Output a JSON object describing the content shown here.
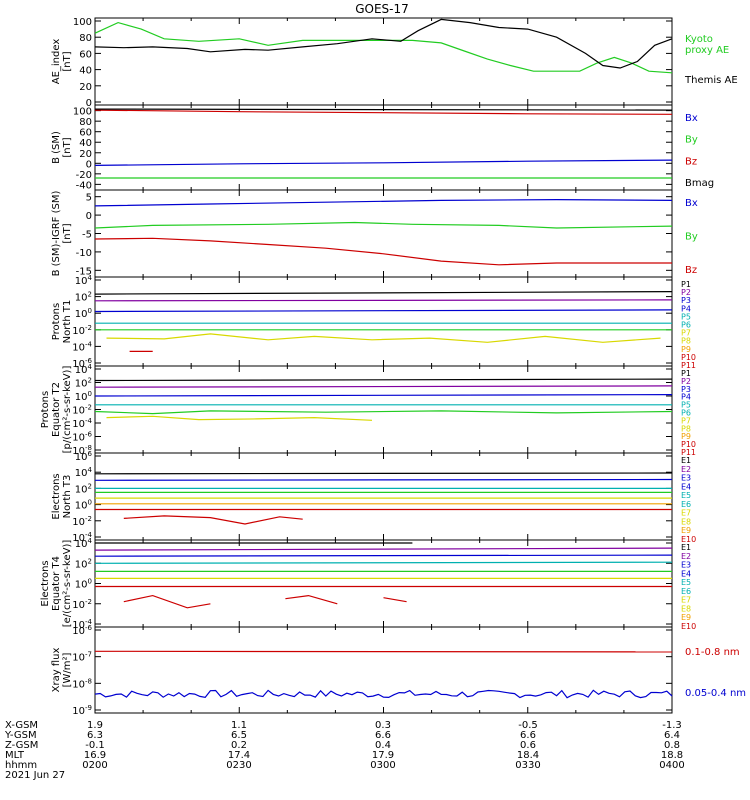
{
  "title": "GOES-17",
  "colors": {
    "black": "#000000",
    "blue": "#0000d0",
    "green": "#22cc22",
    "red": "#cc0000",
    "cyan": "#00b0b0",
    "orange": "#f0a000",
    "yellow": "#d8d800",
    "purple": "#8000a0"
  },
  "chart_data": [
    {
      "type": "line",
      "ylabel": "AE_index\n[nT]",
      "ylim": [
        0,
        100
      ],
      "yticks": [
        "0",
        "20",
        "40",
        "60",
        "80",
        "100"
      ],
      "series": [
        {
          "name": "Kyoto\nproxy AE",
          "color": "green",
          "x": [
            0,
            0.04,
            0.08,
            0.12,
            0.18,
            0.25,
            0.3,
            0.36,
            0.42,
            0.5,
            0.55,
            0.6,
            0.64,
            0.68,
            0.72,
            0.76,
            0.8,
            0.84,
            0.87,
            0.9,
            0.93,
            0.96,
            1
          ],
          "y": [
            85,
            98,
            90,
            78,
            75,
            78,
            70,
            76,
            76,
            76,
            76,
            73,
            63,
            53,
            45,
            38,
            38,
            38,
            48,
            55,
            48,
            38,
            36
          ]
        },
        {
          "name": "Themis AE",
          "color": "black",
          "x": [
            0,
            0.05,
            0.1,
            0.16,
            0.2,
            0.26,
            0.3,
            0.36,
            0.42,
            0.48,
            0.53,
            0.56,
            0.6,
            0.65,
            0.7,
            0.75,
            0.8,
            0.85,
            0.88,
            0.91,
            0.94,
            0.97,
            1
          ],
          "y": [
            68,
            67,
            68,
            66,
            62,
            65,
            64,
            68,
            72,
            78,
            75,
            88,
            102,
            98,
            92,
            90,
            80,
            60,
            45,
            42,
            50,
            70,
            78
          ]
        }
      ]
    },
    {
      "type": "line",
      "ylabel": "B (SM)\n[nT]",
      "ylim": [
        -45,
        105
      ],
      "yticks": [
        "-40",
        "-20",
        "0",
        "20",
        "40",
        "60",
        "80",
        "100"
      ],
      "series": [
        {
          "name": "Bx",
          "color": "blue",
          "x": [
            0,
            0.25,
            0.5,
            0.75,
            1
          ],
          "y": [
            -4,
            -1,
            1,
            4,
            6
          ]
        },
        {
          "name": "By",
          "color": "green",
          "x": [
            0,
            0.5,
            1
          ],
          "y": [
            -28,
            -28,
            -28
          ]
        },
        {
          "name": "Bz",
          "color": "red",
          "x": [
            0,
            0.25,
            0.5,
            0.75,
            1
          ],
          "y": [
            101,
            98,
            96,
            94,
            93
          ]
        },
        {
          "name": "Bmag",
          "color": "black",
          "x": [
            0,
            0.5,
            1
          ],
          "y": [
            103,
            102,
            101
          ]
        }
      ]
    },
    {
      "type": "line",
      "ylabel": "B (SM)-IGRF (SM)\n[nT]",
      "ylim": [
        -16,
        6
      ],
      "yticks": [
        "-15",
        "-10",
        "-5",
        "0",
        "5"
      ],
      "series": [
        {
          "name": "Bx",
          "color": "blue",
          "x": [
            0,
            0.2,
            0.4,
            0.6,
            0.8,
            1
          ],
          "y": [
            2.5,
            3,
            3.5,
            4,
            4.2,
            4
          ]
        },
        {
          "name": "By",
          "color": "green",
          "x": [
            0,
            0.1,
            0.3,
            0.45,
            0.55,
            0.7,
            0.8,
            1
          ],
          "y": [
            -3.5,
            -2.8,
            -2.5,
            -2,
            -2.5,
            -2.8,
            -3.5,
            -3
          ]
        },
        {
          "name": "Bz",
          "color": "red",
          "x": [
            0,
            0.1,
            0.2,
            0.3,
            0.4,
            0.5,
            0.6,
            0.7,
            0.8,
            1
          ],
          "y": [
            -6.5,
            -6.3,
            -7,
            -8,
            -9,
            -10.5,
            -12.5,
            -13.5,
            -13,
            -13
          ]
        }
      ]
    },
    {
      "type": "line",
      "ylabel": "Protons\nNorth T1",
      "log": true,
      "ylim": [
        -6,
        4
      ],
      "yticks": [
        "10^-6",
        "10^-4",
        "10^-2",
        "10^0",
        "10^2",
        "10^4"
      ],
      "labels": [
        "P1",
        "P2",
        "P3",
        "P4",
        "P5",
        "P6",
        "P7",
        "P8",
        "P9",
        "P10",
        "P11"
      ],
      "series": [
        {
          "name": "P1",
          "color": "black",
          "x": [
            0,
            1
          ],
          "y": [
            2.3,
            2.6
          ]
        },
        {
          "name": "P3",
          "color": "purple",
          "x": [
            0,
            1
          ],
          "y": [
            1.5,
            1.6
          ]
        },
        {
          "name": "P4",
          "color": "blue",
          "x": [
            0,
            1
          ],
          "y": [
            0.2,
            0.4
          ]
        },
        {
          "name": "P6",
          "color": "cyan",
          "x": [
            0,
            1
          ],
          "y": [
            -1.2,
            -1.2
          ]
        },
        {
          "name": "P7",
          "color": "green",
          "x": [
            0,
            1
          ],
          "y": [
            -2,
            -2
          ]
        },
        {
          "name": "P8",
          "color": "yellow",
          "x": [
            0.02,
            0.12,
            0.2,
            0.3,
            0.38,
            0.48,
            0.58,
            0.68,
            0.78,
            0.88,
            0.98
          ],
          "y": [
            -3,
            -3.1,
            -2.5,
            -3.2,
            -2.8,
            -3.2,
            -3,
            -3.5,
            -2.8,
            -3.5,
            -3
          ]
        },
        {
          "name": "P10",
          "color": "red",
          "x": [
            0.06,
            0.1
          ],
          "y": [
            -4.6,
            -4.6
          ]
        }
      ]
    },
    {
      "type": "line",
      "ylabel": "Protons\nEquator T2\n[p/(cm²-s-sr-keV)]",
      "log": true,
      "ylim": [
        -8,
        4
      ],
      "yticks": [
        "10^-8",
        "10^-6",
        "10^-4",
        "10^-2",
        "10^0",
        "10^2",
        "10^4"
      ],
      "labels": [
        "P1",
        "P2",
        "P3",
        "P4",
        "P5",
        "P6",
        "P7",
        "P8",
        "P9",
        "P10",
        "P11"
      ],
      "series": [
        {
          "name": "P1",
          "color": "black",
          "x": [
            0,
            1
          ],
          "y": [
            2.3,
            2.5
          ]
        },
        {
          "name": "P3",
          "color": "purple",
          "x": [
            0,
            1
          ],
          "y": [
            1.3,
            1.5
          ]
        },
        {
          "name": "P4",
          "color": "blue",
          "x": [
            0,
            1
          ],
          "y": [
            0,
            0.2
          ]
        },
        {
          "name": "P6",
          "color": "cyan",
          "x": [
            0,
            1
          ],
          "y": [
            -1.3,
            -1.3
          ]
        },
        {
          "name": "P7",
          "color": "green",
          "x": [
            0,
            0.1,
            0.2,
            0.4,
            0.6,
            0.8,
            1
          ],
          "y": [
            -2.3,
            -2.6,
            -2.2,
            -2.4,
            -2.2,
            -2.5,
            -2.3
          ]
        },
        {
          "name": "P8",
          "color": "yellow",
          "x": [
            0.02,
            0.1,
            0.18,
            0.28,
            0.38,
            0.48
          ],
          "y": [
            -3.2,
            -3,
            -3.5,
            -3.4,
            -3.2,
            -3.6
          ]
        }
      ]
    },
    {
      "type": "line",
      "ylabel": "Electrons\nNorth T3",
      "log": true,
      "ylim": [
        -4,
        6
      ],
      "yticks": [
        "10^-4",
        "10^-2",
        "10^0",
        "10^2",
        "10^4",
        "10^6"
      ],
      "labels": [
        "E1",
        "E2",
        "E3",
        "E4",
        "E5",
        "E6",
        "E7",
        "E8",
        "E9",
        "E10"
      ],
      "series": [
        {
          "name": "E1",
          "color": "black",
          "x": [
            0,
            1
          ],
          "y": [
            3.8,
            3.9
          ]
        },
        {
          "name": "E3",
          "color": "blue",
          "x": [
            0,
            1
          ],
          "y": [
            3,
            3.1
          ]
        },
        {
          "name": "E4",
          "color": "cyan",
          "x": [
            0,
            1
          ],
          "y": [
            2,
            2
          ]
        },
        {
          "name": "E5",
          "color": "green",
          "x": [
            0,
            1
          ],
          "y": [
            1.5,
            1.5
          ]
        },
        {
          "name": "E6",
          "color": "yellow",
          "x": [
            0,
            1
          ],
          "y": [
            0.8,
            0.8
          ]
        },
        {
          "name": "E7",
          "color": "orange",
          "x": [
            0,
            1
          ],
          "y": [
            0.1,
            0.1
          ]
        },
        {
          "name": "E8",
          "color": "red",
          "x": [
            0,
            1
          ],
          "y": [
            -0.6,
            -0.6
          ]
        },
        {
          "name": "E9",
          "color": "red",
          "x": [
            0.05,
            0.12,
            0.2,
            0.26,
            0.32,
            0.36
          ],
          "y": [
            -1.7,
            -1.4,
            -1.6,
            -2.4,
            -1.5,
            -1.8
          ]
        }
      ]
    },
    {
      "type": "line",
      "ylabel": "Electrons\nEquator T4\n[e/(cm²-s-sr-keV)]",
      "log": true,
      "ylim": [
        -4,
        4
      ],
      "yticks": [
        "10^-4",
        "10^-2",
        "10^0",
        "10^2",
        "10^4"
      ],
      "labels": [
        "E1",
        "E2",
        "E3",
        "E4",
        "E5",
        "E6",
        "E7",
        "E8",
        "E9",
        "E10"
      ],
      "series": [
        {
          "name": "E1",
          "color": "black",
          "x": [
            0,
            0.55
          ],
          "y": [
            4,
            4
          ]
        },
        {
          "name": "E2",
          "color": "purple",
          "x": [
            0,
            1
          ],
          "y": [
            3.3,
            3.5
          ]
        },
        {
          "name": "E3",
          "color": "blue",
          "x": [
            0,
            1
          ],
          "y": [
            2.7,
            2.8
          ]
        },
        {
          "name": "E4",
          "color": "cyan",
          "x": [
            0,
            1
          ],
          "y": [
            2,
            2.1
          ]
        },
        {
          "name": "E5",
          "color": "green",
          "x": [
            0,
            1
          ],
          "y": [
            1.2,
            1.2
          ]
        },
        {
          "name": "E6",
          "color": "yellow",
          "x": [
            0,
            1
          ],
          "y": [
            0.5,
            0.5
          ]
        },
        {
          "name": "E8",
          "color": "red",
          "x": [
            0,
            1
          ],
          "y": [
            -0.3,
            -0.3
          ]
        },
        {
          "name": "E9",
          "color": "red",
          "x": [
            0.05,
            0.1,
            0.16,
            0.2
          ],
          "y": [
            -1.8,
            -1.2,
            -2.4,
            -2
          ]
        },
        {
          "name": "E9b",
          "color": "red",
          "x": [
            0.33,
            0.37,
            0.42
          ],
          "y": [
            -1.5,
            -1.2,
            -2
          ]
        },
        {
          "name": "E9c",
          "color": "red",
          "x": [
            0.5,
            0.54
          ],
          "y": [
            -1.4,
            -1.8
          ]
        }
      ]
    },
    {
      "type": "line",
      "ylabel": "Xray flux\n[W/m²]",
      "log": true,
      "ylim": [
        -9,
        -6
      ],
      "yticks": [
        "10^-9",
        "10^-8",
        "10^-7",
        "10^-6"
      ],
      "series": [
        {
          "name": "0.1-0.8 nm",
          "color": "red",
          "x": [
            0,
            1
          ],
          "y": [
            -6.8,
            -6.82
          ]
        },
        {
          "name": "0.05-0.4 nm",
          "color": "blue",
          "noisy": true,
          "x": [
            0,
            1
          ],
          "y": [
            -8.4,
            -8.4
          ]
        }
      ]
    }
  ],
  "xaxis": {
    "rows": [
      {
        "name": "X-GSM",
        "values": [
          "1.9",
          "1.1",
          "0.3",
          "-0.5",
          "-1.3"
        ]
      },
      {
        "name": "Y-GSM",
        "values": [
          "6.3",
          "6.5",
          "6.6",
          "6.6",
          "6.4"
        ]
      },
      {
        "name": "Z-GSM",
        "values": [
          "-0.1",
          "0.2",
          "0.4",
          "0.6",
          "0.8"
        ]
      },
      {
        "name": "MLT",
        "values": [
          "16.9",
          "17.4",
          "17.9",
          "18.4",
          "18.8"
        ]
      },
      {
        "name": "hhmm",
        "values": [
          "0200",
          "0230",
          "0300",
          "0330",
          "0400"
        ]
      }
    ],
    "date": "2021 Jun 27"
  },
  "side_labels": [
    [
      {
        "t": "Kyoto",
        "c": "green"
      },
      {
        "t": "proxy AE",
        "c": "green"
      },
      {
        "t": "Themis AE",
        "c": "black"
      }
    ],
    [
      {
        "t": "Bx",
        "c": "blue"
      },
      {
        "t": "By",
        "c": "green"
      },
      {
        "t": "Bz",
        "c": "red"
      },
      {
        "t": "Bmag",
        "c": "black"
      }
    ],
    [
      {
        "t": "Bx",
        "c": "blue"
      },
      {
        "t": "By",
        "c": "green"
      },
      {
        "t": "Bz",
        "c": "red"
      }
    ],
    [],
    [],
    [],
    [],
    [
      {
        "t": "0.1-0.8 nm",
        "c": "red"
      },
      {
        "t": "0.05-0.4 nm",
        "c": "blue"
      }
    ]
  ]
}
